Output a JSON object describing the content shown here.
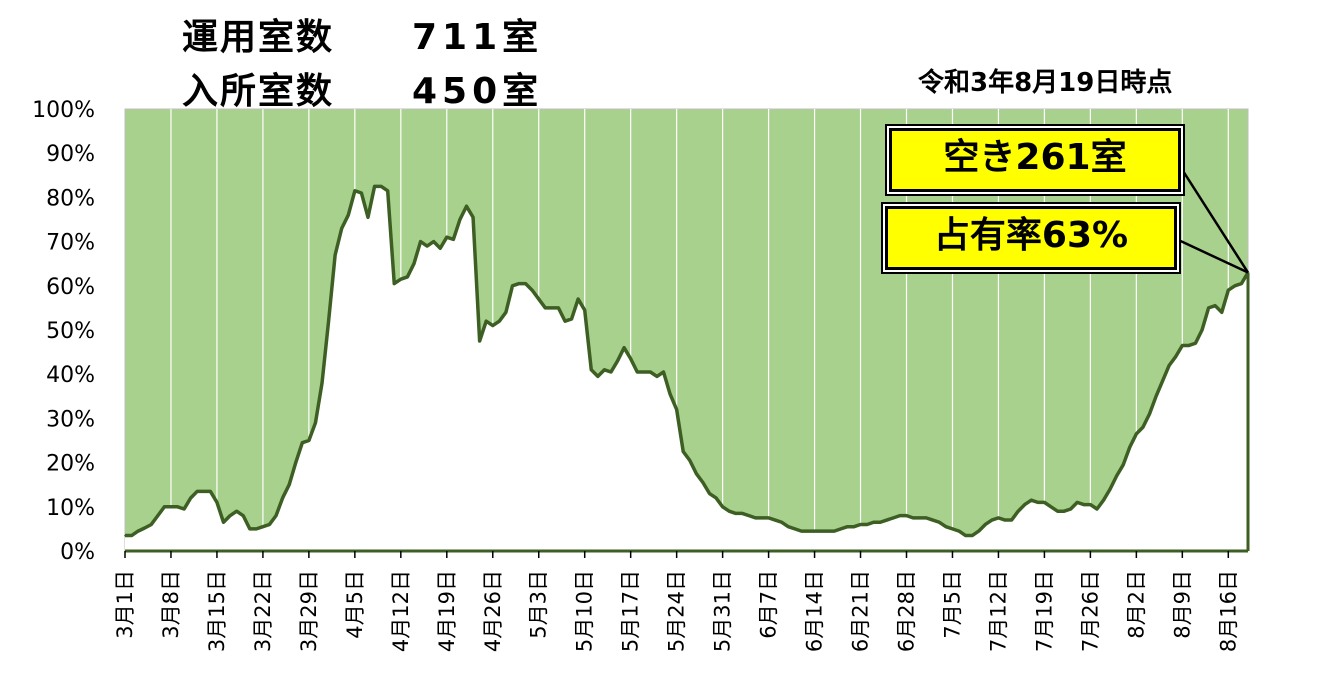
{
  "header": {
    "operating_rooms_label": "運用室数",
    "operating_rooms_value": "711室",
    "occupied_rooms_label": "入所室数",
    "occupied_rooms_value": "450室",
    "as_of": "令和3年8月19日時点"
  },
  "callouts": {
    "vacant": "空き261室",
    "occupancy": "占有率63%"
  },
  "colors": {
    "plot_fill": "#a9d18e",
    "line": "#3d5f23",
    "callout_bg": "#ffff00"
  },
  "chart_data": {
    "type": "area",
    "title": "",
    "xlabel": "",
    "ylabel": "",
    "ylim": [
      0,
      100
    ],
    "y_unit": "%",
    "y_ticks": [
      "0%",
      "10%",
      "20%",
      "30%",
      "40%",
      "50%",
      "60%",
      "70%",
      "80%",
      "90%",
      "100%"
    ],
    "x_tick_labels": [
      "3月1日",
      "3月8日",
      "3月15日",
      "3月22日",
      "3月29日",
      "4月5日",
      "4月12日",
      "4月19日",
      "4月26日",
      "5月3日",
      "5月10日",
      "5月17日",
      "5月24日",
      "5月31日",
      "6月7日",
      "6月14日",
      "6月21日",
      "6月28日",
      "7月5日",
      "7月12日",
      "7月19日",
      "7月26日",
      "8月2日",
      "8月9日",
      "8月16日"
    ],
    "x_start": "3月1日",
    "x_end": "8月19日",
    "grid": {
      "horizontal": false,
      "vertical": true
    },
    "series": [
      {
        "values": [
          3.5,
          3.5,
          4.5,
          5.2,
          6,
          8,
          10,
          10,
          10,
          9.5,
          12,
          13.5,
          13.5,
          13.5,
          11,
          6.5,
          8,
          9,
          8,
          5,
          5,
          5.5,
          6,
          8,
          12,
          15,
          20,
          24.5,
          25,
          29,
          38,
          52,
          67,
          73,
          76,
          81.5,
          81,
          75.5,
          82.5,
          82.5,
          81.5,
          60.5,
          61.5,
          62,
          65,
          70,
          69,
          70,
          68.5,
          71,
          70.5,
          75,
          78,
          75.5,
          47.5,
          52,
          51,
          52,
          54,
          60,
          60.5,
          60.5,
          59,
          57,
          55,
          55,
          55,
          52,
          52.5,
          57,
          54.5,
          41,
          39.5,
          41,
          40.5,
          43,
          46,
          43.5,
          40.5,
          40.5,
          40.5,
          39.5,
          40.5,
          35.5,
          32,
          22.5,
          20.5,
          17.5,
          15.5,
          13,
          12,
          10,
          9,
          8.5,
          8.5,
          8,
          7.5,
          7.5,
          7.5,
          7,
          6.5,
          5.5,
          5,
          4.5,
          4.5,
          4.5,
          4.5,
          4.5,
          4.5,
          5,
          5.5,
          5.5,
          6,
          6,
          6.5,
          6.5,
          7,
          7.5,
          8,
          8,
          7.5,
          7.5,
          7.5,
          7,
          6.5,
          5.5,
          5,
          4.5,
          3.5,
          3.5,
          4.5,
          6,
          7,
          7.5,
          7,
          7,
          9,
          10.5,
          11.5,
          11,
          11,
          10,
          9,
          9,
          9.5,
          11,
          10.5,
          10.5,
          9.5,
          11.5,
          14,
          17,
          19.5,
          23.5,
          26.5,
          28,
          31,
          35,
          38.5,
          42,
          44,
          46.5,
          46.5,
          47,
          50,
          55,
          55.5,
          54,
          59,
          60,
          60.5,
          63
        ]
      }
    ]
  }
}
